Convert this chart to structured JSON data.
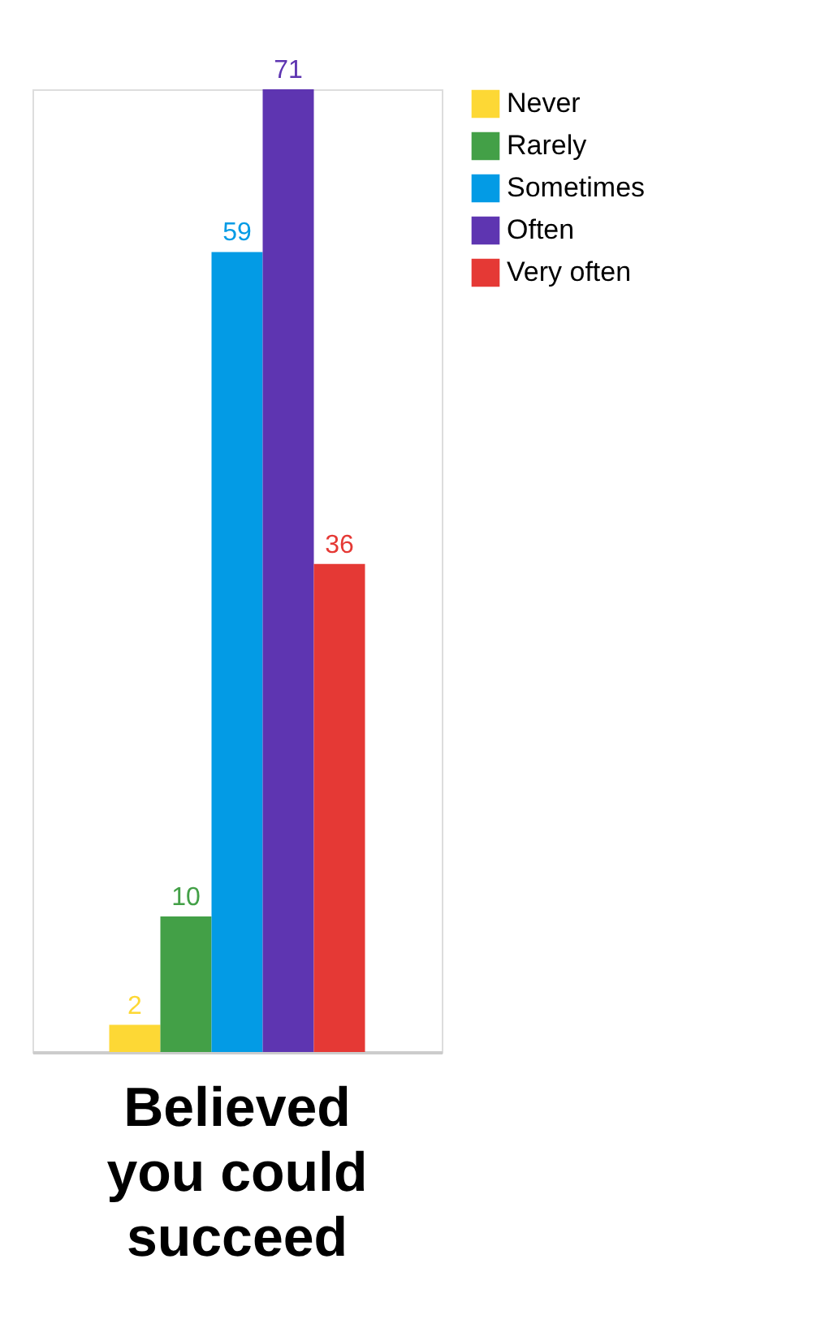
{
  "chart_data": {
    "type": "bar",
    "categories": [
      "Believed you could succeed"
    ],
    "series": [
      {
        "name": "Never",
        "color": "#fdd835",
        "values": [
          2
        ]
      },
      {
        "name": "Rarely",
        "color": "#43a047",
        "values": [
          10
        ]
      },
      {
        "name": "Sometimes",
        "color": "#039be5",
        "values": [
          59
        ]
      },
      {
        "name": "Often",
        "color": "#5e35b1",
        "values": [
          71
        ]
      },
      {
        "name": "Very often",
        "color": "#e53935",
        "values": [
          36
        ]
      }
    ],
    "data_labels": true,
    "legend": "top right",
    "tick_labels": "x",
    "grid": false
  }
}
